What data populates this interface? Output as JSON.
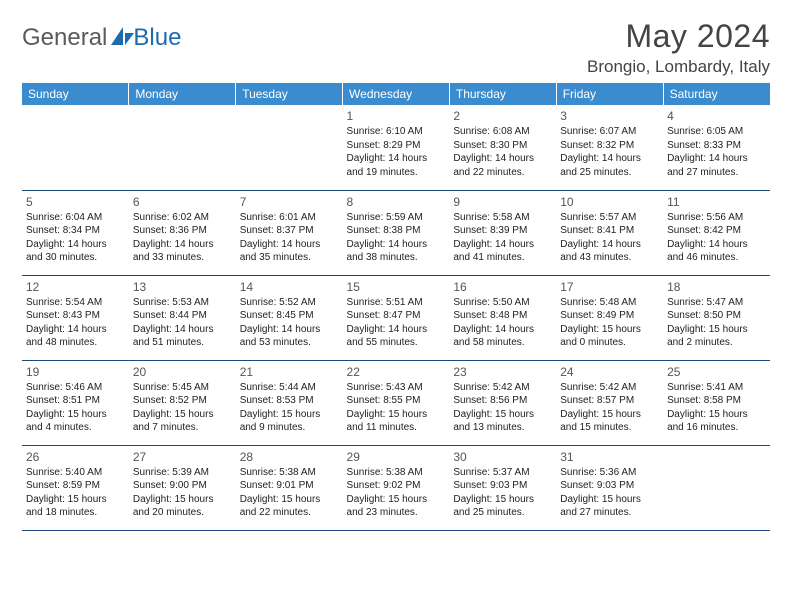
{
  "logo": {
    "general": "General",
    "blue": "Blue"
  },
  "title": "May 2024",
  "location": "Brongio, Lombardy, Italy",
  "colors": {
    "header_bg": "#3b8ccf",
    "header_text": "#ffffff",
    "border": "#1a4a7a",
    "text": "#333333",
    "logo_gray": "#5a5a5a",
    "logo_blue": "#1c6bb0"
  },
  "day_headers": [
    "Sunday",
    "Monday",
    "Tuesday",
    "Wednesday",
    "Thursday",
    "Friday",
    "Saturday"
  ],
  "weeks": [
    [
      null,
      null,
      null,
      {
        "n": "1",
        "sr": "6:10 AM",
        "ss": "8:29 PM",
        "dh": 14,
        "dm": 19
      },
      {
        "n": "2",
        "sr": "6:08 AM",
        "ss": "8:30 PM",
        "dh": 14,
        "dm": 22
      },
      {
        "n": "3",
        "sr": "6:07 AM",
        "ss": "8:32 PM",
        "dh": 14,
        "dm": 25
      },
      {
        "n": "4",
        "sr": "6:05 AM",
        "ss": "8:33 PM",
        "dh": 14,
        "dm": 27
      }
    ],
    [
      {
        "n": "5",
        "sr": "6:04 AM",
        "ss": "8:34 PM",
        "dh": 14,
        "dm": 30
      },
      {
        "n": "6",
        "sr": "6:02 AM",
        "ss": "8:36 PM",
        "dh": 14,
        "dm": 33
      },
      {
        "n": "7",
        "sr": "6:01 AM",
        "ss": "8:37 PM",
        "dh": 14,
        "dm": 35
      },
      {
        "n": "8",
        "sr": "5:59 AM",
        "ss": "8:38 PM",
        "dh": 14,
        "dm": 38
      },
      {
        "n": "9",
        "sr": "5:58 AM",
        "ss": "8:39 PM",
        "dh": 14,
        "dm": 41
      },
      {
        "n": "10",
        "sr": "5:57 AM",
        "ss": "8:41 PM",
        "dh": 14,
        "dm": 43
      },
      {
        "n": "11",
        "sr": "5:56 AM",
        "ss": "8:42 PM",
        "dh": 14,
        "dm": 46
      }
    ],
    [
      {
        "n": "12",
        "sr": "5:54 AM",
        "ss": "8:43 PM",
        "dh": 14,
        "dm": 48
      },
      {
        "n": "13",
        "sr": "5:53 AM",
        "ss": "8:44 PM",
        "dh": 14,
        "dm": 51
      },
      {
        "n": "14",
        "sr": "5:52 AM",
        "ss": "8:45 PM",
        "dh": 14,
        "dm": 53
      },
      {
        "n": "15",
        "sr": "5:51 AM",
        "ss": "8:47 PM",
        "dh": 14,
        "dm": 55
      },
      {
        "n": "16",
        "sr": "5:50 AM",
        "ss": "8:48 PM",
        "dh": 14,
        "dm": 58
      },
      {
        "n": "17",
        "sr": "5:48 AM",
        "ss": "8:49 PM",
        "dh": 15,
        "dm": 0
      },
      {
        "n": "18",
        "sr": "5:47 AM",
        "ss": "8:50 PM",
        "dh": 15,
        "dm": 2
      }
    ],
    [
      {
        "n": "19",
        "sr": "5:46 AM",
        "ss": "8:51 PM",
        "dh": 15,
        "dm": 4
      },
      {
        "n": "20",
        "sr": "5:45 AM",
        "ss": "8:52 PM",
        "dh": 15,
        "dm": 7
      },
      {
        "n": "21",
        "sr": "5:44 AM",
        "ss": "8:53 PM",
        "dh": 15,
        "dm": 9
      },
      {
        "n": "22",
        "sr": "5:43 AM",
        "ss": "8:55 PM",
        "dh": 15,
        "dm": 11
      },
      {
        "n": "23",
        "sr": "5:42 AM",
        "ss": "8:56 PM",
        "dh": 15,
        "dm": 13
      },
      {
        "n": "24",
        "sr": "5:42 AM",
        "ss": "8:57 PM",
        "dh": 15,
        "dm": 15
      },
      {
        "n": "25",
        "sr": "5:41 AM",
        "ss": "8:58 PM",
        "dh": 15,
        "dm": 16
      }
    ],
    [
      {
        "n": "26",
        "sr": "5:40 AM",
        "ss": "8:59 PM",
        "dh": 15,
        "dm": 18
      },
      {
        "n": "27",
        "sr": "5:39 AM",
        "ss": "9:00 PM",
        "dh": 15,
        "dm": 20
      },
      {
        "n": "28",
        "sr": "5:38 AM",
        "ss": "9:01 PM",
        "dh": 15,
        "dm": 22
      },
      {
        "n": "29",
        "sr": "5:38 AM",
        "ss": "9:02 PM",
        "dh": 15,
        "dm": 23
      },
      {
        "n": "30",
        "sr": "5:37 AM",
        "ss": "9:03 PM",
        "dh": 15,
        "dm": 25
      },
      {
        "n": "31",
        "sr": "5:36 AM",
        "ss": "9:03 PM",
        "dh": 15,
        "dm": 27
      },
      null
    ]
  ],
  "labels": {
    "sunrise": "Sunrise:",
    "sunset": "Sunset:",
    "daylight": "Daylight:",
    "hours": "hours",
    "and": "and",
    "minutes": "minutes."
  }
}
